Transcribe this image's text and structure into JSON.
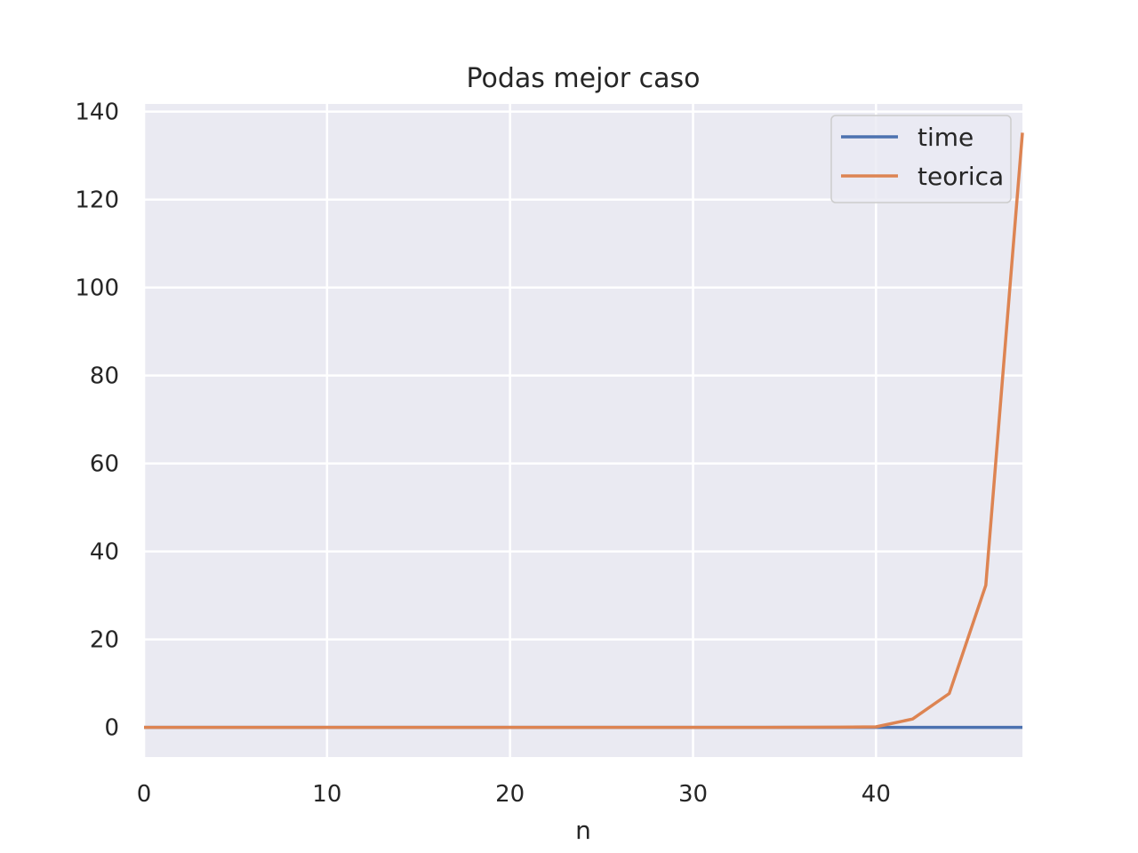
{
  "chart_data": {
    "type": "line",
    "title": "Podas mejor caso",
    "xlabel": "n",
    "ylabel": "",
    "xlim": [
      0,
      48
    ],
    "ylim": [
      -6.75,
      141.75
    ],
    "xticks": [
      0,
      10,
      20,
      30,
      40
    ],
    "xtick_labels": [
      "0",
      "10",
      "20",
      "30",
      "40"
    ],
    "yticks": [
      0,
      20,
      40,
      60,
      80,
      100,
      120,
      140
    ],
    "ytick_labels": [
      "0",
      "20",
      "40",
      "60",
      "80",
      "100",
      "120",
      "140"
    ],
    "grid": true,
    "legend": "top-right",
    "x": [
      0,
      2,
      4,
      6,
      8,
      10,
      12,
      14,
      16,
      18,
      20,
      22,
      24,
      26,
      28,
      30,
      32,
      34,
      36,
      38,
      40,
      42,
      44,
      46,
      48
    ],
    "series": [
      {
        "name": "time",
        "color": "#4c72b0",
        "values": [
          0,
          0,
          0,
          0,
          0,
          0,
          0,
          0,
          0,
          0,
          0,
          0,
          0,
          0,
          0,
          0,
          0,
          0,
          0,
          0,
          0,
          0,
          0,
          0,
          0
        ]
      },
      {
        "name": "teorica",
        "color": "#dd8452",
        "values": [
          0,
          0,
          0,
          0,
          0,
          0,
          0,
          0,
          0,
          0,
          0,
          0,
          0,
          0,
          0,
          0,
          0,
          0,
          0.01,
          0.03,
          0.12,
          1.9,
          7.7,
          32.3,
          135.2
        ]
      }
    ]
  },
  "colors": {
    "plot_background": "#eaeaf2",
    "grid": "#ffffff",
    "legend_border": "#cccccc"
  }
}
